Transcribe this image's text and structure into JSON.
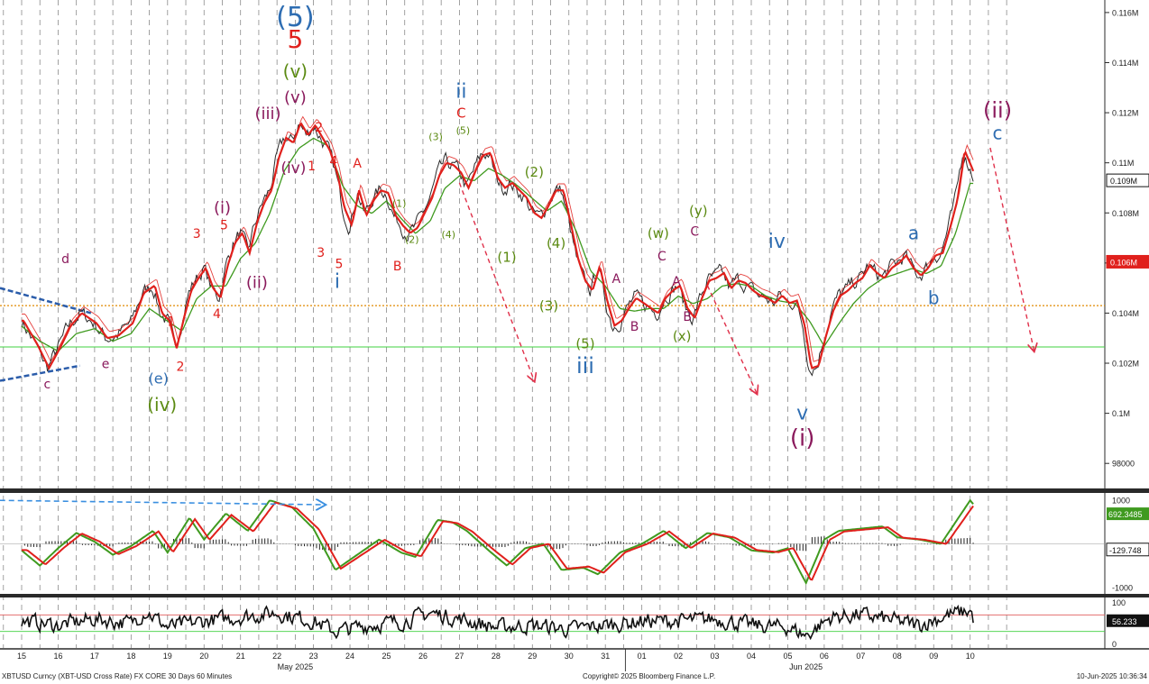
{
  "footer": {
    "left": "XBTUSD Curncy (XBT-USD Cross Rate) FX CORE 30 Days 60 Minutes",
    "center": "Copyright© 2025 Bloomberg Finance L.P.",
    "right": "10-Jun-2025 10:36:34"
  },
  "colors": {
    "price": "#2b2b2b",
    "ma_fast": "#e0201c",
    "ma_slow": "#3f9a1f",
    "ma_thin": "#e0201c",
    "support_orange": "#e08a00",
    "support_green": "#3fd13f",
    "wave_blue": "#2e6db2",
    "wave_red": "#e0201c",
    "wave_olive": "#5b8a12",
    "wave_purple": "#8a1a5c",
    "arrow_pink": "#e0304a",
    "trend_blue": "#2a5caa"
  },
  "chart_data": [
    {
      "type": "line",
      "name": "price panel",
      "x_tick_labels": [
        "15",
        "16",
        "17",
        "18",
        "19",
        "20",
        "21",
        "22",
        "23",
        "24",
        "25",
        "26",
        "27",
        "28",
        "29",
        "30",
        "31",
        "01",
        "02",
        "03",
        "04",
        "05",
        "06",
        "07",
        "08",
        "09",
        "10"
      ],
      "month_labels": [
        "May 2025",
        "Jun 2025"
      ],
      "y_tick_labels": [
        "0.116M",
        "0.114M",
        "0.112M",
        "0.11M",
        "0.108M",
        "0.106M",
        "0.104M",
        "0.102M",
        "0.1M",
        "98000"
      ],
      "ylim": [
        97000,
        116500
      ],
      "grid": true,
      "last_value_labels": [
        "0.109M",
        "0.106M"
      ],
      "horizontal_lines": [
        104300,
        102650
      ],
      "close_points": [
        [
          0,
          103700
        ],
        [
          0.4,
          102700
        ],
        [
          0.7,
          101800
        ],
        [
          1,
          102600
        ],
        [
          1.3,
          103500
        ],
        [
          1.6,
          104000
        ],
        [
          2,
          103600
        ],
        [
          2.3,
          103000
        ],
        [
          2.6,
          103100
        ],
        [
          3,
          103600
        ],
        [
          3.3,
          104800
        ],
        [
          3.6,
          105100
        ],
        [
          3.8,
          104000
        ],
        [
          4,
          103700
        ],
        [
          4.2,
          102600
        ],
        [
          4.4,
          103800
        ],
        [
          4.6,
          104900
        ],
        [
          4.8,
          105400
        ],
        [
          5,
          105800
        ],
        [
          5.2,
          105000
        ],
        [
          5.4,
          104600
        ],
        [
          5.6,
          105900
        ],
        [
          5.8,
          106800
        ],
        [
          6,
          107200
        ],
        [
          6.2,
          106400
        ],
        [
          6.4,
          107600
        ],
        [
          6.6,
          108400
        ],
        [
          6.8,
          108900
        ],
        [
          7,
          110200
        ],
        [
          7.2,
          111000
        ],
        [
          7.4,
          110800
        ],
        [
          7.6,
          111600
        ],
        [
          7.8,
          111100
        ],
        [
          8,
          111500
        ],
        [
          8.2,
          111000
        ],
        [
          8.4,
          110500
        ],
        [
          8.6,
          109600
        ],
        [
          8.8,
          108200
        ],
        [
          9,
          107500
        ],
        [
          9.2,
          108900
        ],
        [
          9.4,
          107900
        ],
        [
          9.6,
          108500
        ],
        [
          9.8,
          108900
        ],
        [
          10,
          108800
        ],
        [
          10.2,
          107900
        ],
        [
          10.4,
          107500
        ],
        [
          10.6,
          107200
        ],
        [
          10.8,
          107400
        ],
        [
          11,
          108000
        ],
        [
          11.2,
          108600
        ],
        [
          11.4,
          109500
        ],
        [
          11.6,
          110000
        ],
        [
          11.8,
          109900
        ],
        [
          12,
          109600
        ],
        [
          12.2,
          109000
        ],
        [
          12.4,
          109700
        ],
        [
          12.6,
          110300
        ],
        [
          12.8,
          110400
        ],
        [
          13,
          109400
        ],
        [
          13.2,
          109000
        ],
        [
          13.4,
          109200
        ],
        [
          13.6,
          108900
        ],
        [
          13.8,
          108600
        ],
        [
          14,
          108000
        ],
        [
          14.2,
          107800
        ],
        [
          14.4,
          108300
        ],
        [
          14.6,
          108900
        ],
        [
          14.8,
          108900
        ],
        [
          15,
          107600
        ],
        [
          15.2,
          106200
        ],
        [
          15.4,
          105300
        ],
        [
          15.6,
          104900
        ],
        [
          15.8,
          105900
        ],
        [
          16,
          104500
        ],
        [
          16.2,
          103500
        ],
        [
          16.4,
          103700
        ],
        [
          16.6,
          104200
        ],
        [
          16.8,
          104600
        ],
        [
          17,
          104400
        ],
        [
          17.2,
          104200
        ],
        [
          17.4,
          104000
        ],
        [
          17.6,
          104600
        ],
        [
          17.8,
          104900
        ],
        [
          18,
          105100
        ],
        [
          18.2,
          104200
        ],
        [
          18.4,
          103800
        ],
        [
          18.6,
          104600
        ],
        [
          18.8,
          105300
        ],
        [
          19,
          105400
        ],
        [
          19.2,
          105600
        ],
        [
          19.4,
          105000
        ],
        [
          19.6,
          105300
        ],
        [
          19.8,
          105200
        ],
        [
          20,
          104900
        ],
        [
          20.2,
          104700
        ],
        [
          20.4,
          104600
        ],
        [
          20.6,
          104400
        ],
        [
          20.8,
          104700
        ],
        [
          21,
          104400
        ],
        [
          21.2,
          104500
        ],
        [
          21.4,
          103600
        ],
        [
          21.6,
          101800
        ],
        [
          21.8,
          101900
        ],
        [
          22,
          103100
        ],
        [
          22.2,
          104100
        ],
        [
          22.4,
          104700
        ],
        [
          22.6,
          104900
        ],
        [
          22.8,
          105200
        ],
        [
          23,
          105400
        ],
        [
          23.2,
          105900
        ],
        [
          23.4,
          105600
        ],
        [
          23.6,
          105400
        ],
        [
          23.8,
          105800
        ],
        [
          24,
          106000
        ],
        [
          24.2,
          106300
        ],
        [
          24.4,
          105800
        ],
        [
          24.6,
          105500
        ],
        [
          24.8,
          105800
        ],
        [
          25,
          106300
        ],
        [
          25.2,
          106400
        ],
        [
          25.4,
          107400
        ],
        [
          25.6,
          108500
        ],
        [
          25.8,
          110500
        ],
        [
          26,
          109800
        ],
        [
          26.1,
          109400
        ]
      ],
      "ma_slow_points": [
        [
          0,
          103600
        ],
        [
          0.5,
          103000
        ],
        [
          1,
          102600
        ],
        [
          1.5,
          103300
        ],
        [
          2,
          103500
        ],
        [
          2.5,
          103000
        ],
        [
          3,
          103300
        ],
        [
          3.5,
          104300
        ],
        [
          4,
          103800
        ],
        [
          4.4,
          103400
        ],
        [
          4.8,
          104700
        ],
        [
          5.2,
          105200
        ],
        [
          5.6,
          105200
        ],
        [
          6,
          106300
        ],
        [
          6.4,
          106900
        ],
        [
          6.8,
          108100
        ],
        [
          7.2,
          109800
        ],
        [
          7.6,
          110700
        ],
        [
          8,
          111100
        ],
        [
          8.4,
          110800
        ],
        [
          8.8,
          109200
        ],
        [
          9.2,
          108400
        ],
        [
          9.6,
          108100
        ],
        [
          10,
          108600
        ],
        [
          10.4,
          107900
        ],
        [
          10.8,
          107300
        ],
        [
          11.2,
          107800
        ],
        [
          11.6,
          109100
        ],
        [
          12,
          109600
        ],
        [
          12.4,
          109400
        ],
        [
          12.8,
          109900
        ],
        [
          13.2,
          109600
        ],
        [
          13.6,
          109200
        ],
        [
          14,
          108700
        ],
        [
          14.4,
          108200
        ],
        [
          14.8,
          108600
        ],
        [
          15.2,
          107400
        ],
        [
          15.6,
          105800
        ],
        [
          16,
          105200
        ],
        [
          16.4,
          104300
        ],
        [
          16.8,
          104200
        ],
        [
          17.2,
          104300
        ],
        [
          17.6,
          104300
        ],
        [
          18,
          104800
        ],
        [
          18.4,
          104500
        ],
        [
          18.8,
          104700
        ],
        [
          19.2,
          105200
        ],
        [
          19.6,
          105300
        ],
        [
          20,
          105200
        ],
        [
          20.4,
          104800
        ],
        [
          20.8,
          104600
        ],
        [
          21.2,
          104500
        ],
        [
          21.6,
          103800
        ],
        [
          22,
          102800
        ],
        [
          22.4,
          103700
        ],
        [
          22.8,
          104500
        ],
        [
          23.2,
          105100
        ],
        [
          23.6,
          105500
        ],
        [
          24,
          105700
        ],
        [
          24.4,
          105900
        ],
        [
          24.8,
          105700
        ],
        [
          25.2,
          106000
        ],
        [
          25.6,
          107300
        ],
        [
          26,
          109300
        ],
        [
          26.1,
          109300
        ]
      ]
    },
    {
      "type": "line",
      "name": "oscillator panel",
      "y_tick_labels": [
        "1000",
        "-1000"
      ],
      "last_value_labels": [
        "692.3485",
        "-129.748"
      ],
      "ylim": [
        -1150,
        1150
      ]
    },
    {
      "type": "line",
      "name": "stochastic panel",
      "y_tick_labels": [
        "100",
        "0"
      ],
      "last_value_labels": [
        "56.233"
      ],
      "ylim": [
        -10,
        110
      ]
    }
  ],
  "wave_labels": [
    {
      "text": "(5)",
      "color": "wave_blue",
      "size": 30,
      "xi": 7.5,
      "v": 115450
    },
    {
      "text": "5",
      "color": "wave_red",
      "size": 28,
      "xi": 7.5,
      "v": 114600
    },
    {
      "text": "(v)",
      "color": "wave_olive",
      "size": 20,
      "xi": 7.5,
      "v": 113400
    },
    {
      "text": "(v)",
      "color": "wave_purple",
      "size": 18,
      "xi": 7.5,
      "v": 112400
    },
    {
      "text": "(iii)",
      "color": "wave_purple",
      "size": 18,
      "xi": 6.75,
      "v": 111750
    },
    {
      "text": "(iv)",
      "color": "wave_purple",
      "size": 17,
      "xi": 7.45,
      "v": 109600
    },
    {
      "text": "2",
      "color": "wave_red",
      "size": 14,
      "xi": 8.15,
      "v": 111250
    },
    {
      "text": "1",
      "color": "wave_red",
      "size": 14,
      "xi": 7.95,
      "v": 109700
    },
    {
      "text": "4",
      "color": "wave_red",
      "size": 14,
      "xi": 8.55,
      "v": 109900
    },
    {
      "text": "3",
      "color": "wave_red",
      "size": 14,
      "xi": 8.2,
      "v": 106250
    },
    {
      "text": "5",
      "color": "wave_red",
      "size": 14,
      "xi": 8.7,
      "v": 105800
    },
    {
      "text": "i",
      "color": "wave_blue",
      "size": 22,
      "xi": 8.65,
      "v": 105000
    },
    {
      "text": "A",
      "color": "wave_red",
      "size": 14,
      "xi": 9.2,
      "v": 109800
    },
    {
      "text": "B",
      "color": "wave_red",
      "size": 14,
      "xi": 10.3,
      "v": 105700
    },
    {
      "text": "(1)",
      "color": "wave_olive",
      "size": 11,
      "xi": 10.35,
      "v": 108250
    },
    {
      "text": "(2)",
      "color": "wave_olive",
      "size": 11,
      "xi": 10.7,
      "v": 106800
    },
    {
      "text": "(3)",
      "color": "wave_olive",
      "size": 11,
      "xi": 11.35,
      "v": 110900
    },
    {
      "text": "(4)",
      "color": "wave_olive",
      "size": 11,
      "xi": 11.7,
      "v": 107000
    },
    {
      "text": "(5)",
      "color": "wave_olive",
      "size": 11,
      "xi": 12.1,
      "v": 111150
    },
    {
      "text": "C",
      "color": "wave_red",
      "size": 15,
      "xi": 12.05,
      "v": 111800
    },
    {
      "text": "ii",
      "color": "wave_blue",
      "size": 22,
      "xi": 12.05,
      "v": 112600
    },
    {
      "text": "(2)",
      "color": "wave_olive",
      "size": 15,
      "xi": 14.05,
      "v": 109450
    },
    {
      "text": "(1)",
      "color": "wave_olive",
      "size": 15,
      "xi": 13.3,
      "v": 106050
    },
    {
      "text": "(4)",
      "color": "wave_olive",
      "size": 15,
      "xi": 14.65,
      "v": 106600
    },
    {
      "text": "(3)",
      "color": "wave_olive",
      "size": 15,
      "xi": 14.45,
      "v": 104100
    },
    {
      "text": "(5)",
      "color": "wave_olive",
      "size": 15,
      "xi": 15.45,
      "v": 102600
    },
    {
      "text": "iii",
      "color": "wave_blue",
      "size": 24,
      "xi": 15.45,
      "v": 101600
    },
    {
      "text": "A",
      "color": "wave_purple",
      "size": 14,
      "xi": 16.3,
      "v": 105200
    },
    {
      "text": "B",
      "color": "wave_purple",
      "size": 14,
      "xi": 16.8,
      "v": 103300
    },
    {
      "text": "C",
      "color": "wave_purple",
      "size": 14,
      "xi": 17.55,
      "v": 106100
    },
    {
      "text": "(w)",
      "color": "wave_olive",
      "size": 15,
      "xi": 17.45,
      "v": 107000
    },
    {
      "text": "A",
      "color": "wave_purple",
      "size": 14,
      "xi": 17.95,
      "v": 105100
    },
    {
      "text": "B",
      "color": "wave_purple",
      "size": 14,
      "xi": 18.25,
      "v": 103700
    },
    {
      "text": "(x)",
      "color": "wave_olive",
      "size": 15,
      "xi": 18.1,
      "v": 102900
    },
    {
      "text": "C",
      "color": "wave_purple",
      "size": 14,
      "xi": 18.45,
      "v": 107100
    },
    {
      "text": "(y)",
      "color": "wave_olive",
      "size": 15,
      "xi": 18.55,
      "v": 107900
    },
    {
      "text": "iv",
      "color": "wave_blue",
      "size": 22,
      "xi": 20.7,
      "v": 106600
    },
    {
      "text": "v",
      "color": "wave_blue",
      "size": 22,
      "xi": 21.4,
      "v": 99750
    },
    {
      "text": "(i)",
      "color": "wave_purple",
      "size": 26,
      "xi": 21.4,
      "v": 98700
    },
    {
      "text": "a",
      "color": "wave_blue",
      "size": 20,
      "xi": 24.45,
      "v": 106950
    },
    {
      "text": "b",
      "color": "wave_blue",
      "size": 20,
      "xi": 25.0,
      "v": 104350
    },
    {
      "text": "(ii)",
      "color": "wave_purple",
      "size": 24,
      "xi": 26.75,
      "v": 111800
    },
    {
      "text": "c",
      "color": "wave_blue",
      "size": 20,
      "xi": 26.75,
      "v": 110950
    },
    {
      "text": "d",
      "color": "wave_purple",
      "size": 14,
      "xi": 1.2,
      "v": 106000
    },
    {
      "text": "c",
      "color": "wave_purple",
      "size": 14,
      "xi": 0.7,
      "v": 101000
    },
    {
      "text": "e",
      "color": "wave_purple",
      "size": 14,
      "xi": 2.3,
      "v": 101800
    },
    {
      "text": "(e)",
      "color": "wave_blue",
      "size": 16,
      "xi": 3.75,
      "v": 101200
    },
    {
      "text": "(iv)",
      "color": "wave_olive",
      "size": 20,
      "xi": 3.85,
      "v": 100100
    },
    {
      "text": "1",
      "color": "wave_red",
      "size": 14,
      "xi": 4.1,
      "v": 103500
    },
    {
      "text": "2",
      "color": "wave_red",
      "size": 14,
      "xi": 4.35,
      "v": 101700
    },
    {
      "text": "3",
      "color": "wave_red",
      "size": 14,
      "xi": 4.8,
      "v": 107000
    },
    {
      "text": "4",
      "color": "wave_red",
      "size": 14,
      "xi": 5.35,
      "v": 103800
    },
    {
      "text": "5",
      "color": "wave_red",
      "size": 14,
      "xi": 5.55,
      "v": 107350
    },
    {
      "text": "(i)",
      "color": "wave_purple",
      "size": 18,
      "xi": 5.5,
      "v": 108000
    },
    {
      "text": "(ii)",
      "color": "wave_purple",
      "size": 18,
      "xi": 6.45,
      "v": 105000
    }
  ]
}
